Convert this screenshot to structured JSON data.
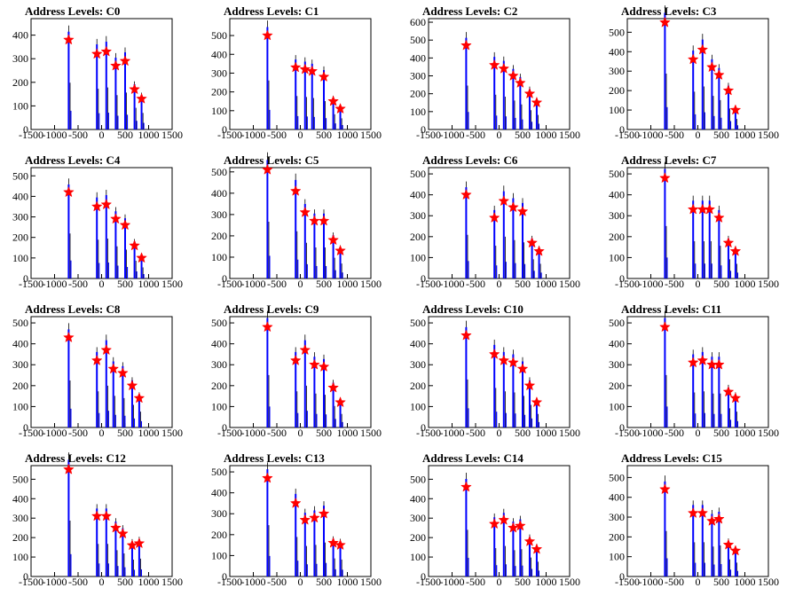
{
  "chart_data": [
    {
      "type": "bar",
      "title": "Address Levels: C0",
      "xlim": [
        -1500,
        1500
      ],
      "ylim": [
        0,
        470
      ],
      "xticks": [
        -1500,
        -1000,
        -500,
        0,
        500,
        1000,
        1500
      ],
      "yticks": [
        0,
        100,
        200,
        300,
        400
      ],
      "peaks": [
        {
          "x": -700,
          "y": 380
        },
        {
          "x": -100,
          "y": 320
        },
        {
          "x": 100,
          "y": 330
        },
        {
          "x": 300,
          "y": 270
        },
        {
          "x": 500,
          "y": 290
        },
        {
          "x": 700,
          "y": 170
        },
        {
          "x": 850,
          "y": 130
        }
      ]
    },
    {
      "type": "bar",
      "title": "Address Levels: C1",
      "xlim": [
        -1500,
        1500
      ],
      "ylim": [
        0,
        590
      ],
      "xticks": [
        -1500,
        -1000,
        -500,
        0,
        500,
        1000,
        1500
      ],
      "yticks": [
        0,
        100,
        200,
        300,
        400,
        500
      ],
      "peaks": [
        {
          "x": -700,
          "y": 500
        },
        {
          "x": -100,
          "y": 330
        },
        {
          "x": 100,
          "y": 320
        },
        {
          "x": 250,
          "y": 310
        },
        {
          "x": 500,
          "y": 280
        },
        {
          "x": 700,
          "y": 150
        },
        {
          "x": 850,
          "y": 110
        }
      ]
    },
    {
      "type": "bar",
      "title": "Address Levels: C2",
      "xlim": [
        -1500,
        1500
      ],
      "ylim": [
        0,
        620
      ],
      "xticks": [
        -1500,
        -1000,
        -500,
        0,
        500,
        1000,
        1500
      ],
      "yticks": [
        0,
        100,
        200,
        300,
        400,
        500,
        600
      ],
      "peaks": [
        {
          "x": -700,
          "y": 470
        },
        {
          "x": -100,
          "y": 360
        },
        {
          "x": 100,
          "y": 340
        },
        {
          "x": 300,
          "y": 300
        },
        {
          "x": 450,
          "y": 260
        },
        {
          "x": 650,
          "y": 200
        },
        {
          "x": 800,
          "y": 150
        }
      ]
    },
    {
      "type": "bar",
      "title": "Address Levels: C3",
      "xlim": [
        -1500,
        1500
      ],
      "ylim": [
        0,
        570
      ],
      "xticks": [
        -1500,
        -1000,
        -500,
        0,
        500,
        1000,
        1500
      ],
      "yticks": [
        0,
        100,
        200,
        300,
        400,
        500
      ],
      "peaks": [
        {
          "x": -700,
          "y": 550
        },
        {
          "x": -100,
          "y": 360
        },
        {
          "x": 100,
          "y": 410
        },
        {
          "x": 300,
          "y": 320
        },
        {
          "x": 450,
          "y": 280
        },
        {
          "x": 650,
          "y": 200
        },
        {
          "x": 800,
          "y": 100
        }
      ]
    },
    {
      "type": "bar",
      "title": "Address Levels: C4",
      "xlim": [
        -1500,
        1500
      ],
      "ylim": [
        0,
        540
      ],
      "xticks": [
        -1500,
        -1000,
        -500,
        0,
        500,
        1000,
        1500
      ],
      "yticks": [
        0,
        100,
        200,
        300,
        400,
        500
      ],
      "peaks": [
        {
          "x": -700,
          "y": 420
        },
        {
          "x": -100,
          "y": 350
        },
        {
          "x": 100,
          "y": 360
        },
        {
          "x": 300,
          "y": 290
        },
        {
          "x": 500,
          "y": 260
        },
        {
          "x": 700,
          "y": 160
        },
        {
          "x": 850,
          "y": 100
        }
      ]
    },
    {
      "type": "bar",
      "title": "Address Levels: C5",
      "xlim": [
        -1500,
        1500
      ],
      "ylim": [
        0,
        520
      ],
      "xticks": [
        -1500,
        -1000,
        -500,
        0,
        500,
        1000,
        1500
      ],
      "yticks": [
        0,
        100,
        200,
        300,
        400,
        500
      ],
      "peaks": [
        {
          "x": -700,
          "y": 510
        },
        {
          "x": -100,
          "y": 410
        },
        {
          "x": 100,
          "y": 310
        },
        {
          "x": 300,
          "y": 270
        },
        {
          "x": 500,
          "y": 270
        },
        {
          "x": 700,
          "y": 180
        },
        {
          "x": 850,
          "y": 130
        }
      ]
    },
    {
      "type": "bar",
      "title": "Address Levels: C6",
      "xlim": [
        -1500,
        1500
      ],
      "ylim": [
        0,
        530
      ],
      "xticks": [
        -1500,
        -1000,
        -500,
        0,
        500,
        1000,
        1500
      ],
      "yticks": [
        0,
        100,
        200,
        300,
        400,
        500
      ],
      "peaks": [
        {
          "x": -700,
          "y": 400
        },
        {
          "x": -100,
          "y": 290
        },
        {
          "x": 100,
          "y": 370
        },
        {
          "x": 300,
          "y": 340
        },
        {
          "x": 500,
          "y": 320
        },
        {
          "x": 700,
          "y": 170
        },
        {
          "x": 850,
          "y": 130
        }
      ]
    },
    {
      "type": "bar",
      "title": "Address Levels: C7",
      "xlim": [
        -1500,
        1500
      ],
      "ylim": [
        0,
        530
      ],
      "xticks": [
        -1500,
        -1000,
        -500,
        0,
        500,
        1000,
        1500
      ],
      "yticks": [
        0,
        100,
        200,
        300,
        400,
        500
      ],
      "peaks": [
        {
          "x": -700,
          "y": 480
        },
        {
          "x": -100,
          "y": 330
        },
        {
          "x": 100,
          "y": 330
        },
        {
          "x": 250,
          "y": 330
        },
        {
          "x": 450,
          "y": 290
        },
        {
          "x": 650,
          "y": 170
        },
        {
          "x": 800,
          "y": 130
        }
      ]
    },
    {
      "type": "bar",
      "title": "Address Levels: C8",
      "xlim": [
        -1500,
        1500
      ],
      "ylim": [
        0,
        530
      ],
      "xticks": [
        -1500,
        -1000,
        -500,
        0,
        500,
        1000,
        1500
      ],
      "yticks": [
        0,
        100,
        200,
        300,
        400,
        500
      ],
      "peaks": [
        {
          "x": -700,
          "y": 430
        },
        {
          "x": -100,
          "y": 320
        },
        {
          "x": 100,
          "y": 370
        },
        {
          "x": 250,
          "y": 280
        },
        {
          "x": 450,
          "y": 260
        },
        {
          "x": 650,
          "y": 200
        },
        {
          "x": 800,
          "y": 140
        }
      ]
    },
    {
      "type": "bar",
      "title": "Address Levels: C9",
      "xlim": [
        -1500,
        1500
      ],
      "ylim": [
        0,
        530
      ],
      "xticks": [
        -1500,
        -1000,
        -500,
        0,
        500,
        1000,
        1500
      ],
      "yticks": [
        0,
        100,
        200,
        300,
        400,
        500
      ],
      "peaks": [
        {
          "x": -700,
          "y": 480
        },
        {
          "x": -100,
          "y": 320
        },
        {
          "x": 100,
          "y": 370
        },
        {
          "x": 300,
          "y": 300
        },
        {
          "x": 500,
          "y": 290
        },
        {
          "x": 700,
          "y": 190
        },
        {
          "x": 850,
          "y": 120
        }
      ]
    },
    {
      "type": "bar",
      "title": "Address Levels: C10",
      "xlim": [
        -1500,
        1500
      ],
      "ylim": [
        0,
        530
      ],
      "xticks": [
        -1500,
        -1000,
        -500,
        0,
        500,
        1000,
        1500
      ],
      "yticks": [
        0,
        100,
        200,
        300,
        400,
        500
      ],
      "peaks": [
        {
          "x": -700,
          "y": 440
        },
        {
          "x": -100,
          "y": 350
        },
        {
          "x": 100,
          "y": 320
        },
        {
          "x": 300,
          "y": 310
        },
        {
          "x": 500,
          "y": 280
        },
        {
          "x": 650,
          "y": 200
        },
        {
          "x": 800,
          "y": 120
        }
      ]
    },
    {
      "type": "bar",
      "title": "Address Levels: C11",
      "xlim": [
        -1500,
        1500
      ],
      "ylim": [
        0,
        530
      ],
      "xticks": [
        -1500,
        -1000,
        -500,
        0,
        500,
        1000,
        1500
      ],
      "yticks": [
        0,
        100,
        200,
        300,
        400,
        500
      ],
      "peaks": [
        {
          "x": -700,
          "y": 480
        },
        {
          "x": -100,
          "y": 310
        },
        {
          "x": 100,
          "y": 320
        },
        {
          "x": 300,
          "y": 300
        },
        {
          "x": 450,
          "y": 300
        },
        {
          "x": 650,
          "y": 170
        },
        {
          "x": 800,
          "y": 140
        }
      ]
    },
    {
      "type": "bar",
      "title": "Address Levels: C12",
      "xlim": [
        -1500,
        1500
      ],
      "ylim": [
        0,
        570
      ],
      "xticks": [
        -1500,
        -1000,
        -500,
        0,
        500,
        1000,
        1500
      ],
      "yticks": [
        0,
        100,
        200,
        300,
        400,
        500
      ],
      "peaks": [
        {
          "x": -700,
          "y": 550
        },
        {
          "x": -100,
          "y": 310
        },
        {
          "x": 100,
          "y": 310
        },
        {
          "x": 300,
          "y": 250
        },
        {
          "x": 450,
          "y": 220
        },
        {
          "x": 650,
          "y": 160
        },
        {
          "x": 800,
          "y": 170
        }
      ]
    },
    {
      "type": "bar",
      "title": "Address Levels: C13",
      "xlim": [
        -1500,
        1500
      ],
      "ylim": [
        0,
        530
      ],
      "xticks": [
        -1500,
        -1000,
        -500,
        0,
        500,
        1000,
        1500
      ],
      "yticks": [
        0,
        100,
        200,
        300,
        400,
        500
      ],
      "peaks": [
        {
          "x": -700,
          "y": 470
        },
        {
          "x": -100,
          "y": 350
        },
        {
          "x": 100,
          "y": 270
        },
        {
          "x": 300,
          "y": 280
        },
        {
          "x": 500,
          "y": 300
        },
        {
          "x": 700,
          "y": 160
        },
        {
          "x": 850,
          "y": 150
        }
      ]
    },
    {
      "type": "bar",
      "title": "Address Levels: C14",
      "xlim": [
        -1500,
        1500
      ],
      "ylim": [
        0,
        570
      ],
      "xticks": [
        -1500,
        -1000,
        -500,
        0,
        500,
        1000,
        1500
      ],
      "yticks": [
        0,
        100,
        200,
        300,
        400,
        500
      ],
      "peaks": [
        {
          "x": -700,
          "y": 460
        },
        {
          "x": -100,
          "y": 270
        },
        {
          "x": 100,
          "y": 290
        },
        {
          "x": 300,
          "y": 250
        },
        {
          "x": 450,
          "y": 260
        },
        {
          "x": 650,
          "y": 180
        },
        {
          "x": 800,
          "y": 140
        }
      ]
    },
    {
      "type": "bar",
      "title": "Address Levels: C15",
      "xlim": [
        -1500,
        1500
      ],
      "ylim": [
        0,
        560
      ],
      "xticks": [
        -1500,
        -1000,
        -500,
        0,
        500,
        1000,
        1500
      ],
      "yticks": [
        0,
        100,
        200,
        300,
        400,
        500
      ],
      "peaks": [
        {
          "x": -700,
          "y": 440
        },
        {
          "x": -100,
          "y": 320
        },
        {
          "x": 100,
          "y": 320
        },
        {
          "x": 300,
          "y": 280
        },
        {
          "x": 450,
          "y": 290
        },
        {
          "x": 650,
          "y": 160
        },
        {
          "x": 800,
          "y": 130
        }
      ]
    }
  ],
  "colors": {
    "bar": "#0000ff",
    "marker": "#ff0000",
    "outline": "#000000",
    "axis": "#000000"
  }
}
